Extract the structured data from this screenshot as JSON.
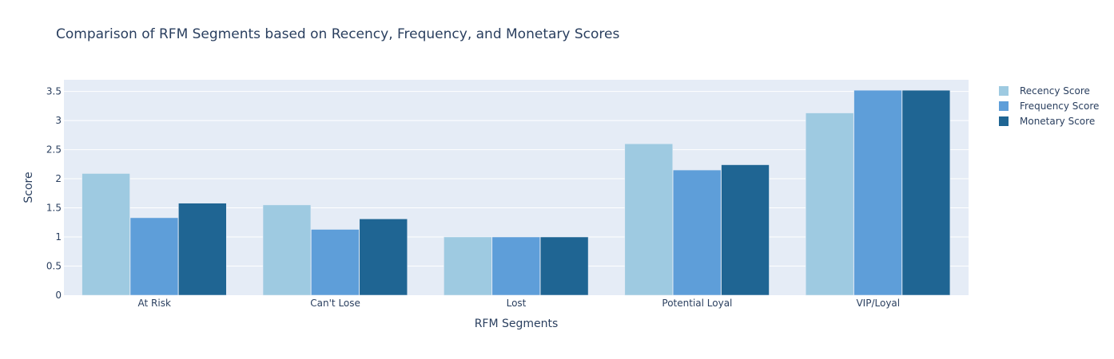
{
  "chart_data": {
    "type": "bar",
    "title": "Comparison of RFM Segments based on Recency, Frequency, and Monetary Scores",
    "xlabel": "RFM Segments",
    "ylabel": "Score",
    "categories": [
      "At Risk",
      "Can't Lose",
      "Lost",
      "Potential Loyal",
      "VIP/Loyal"
    ],
    "series": [
      {
        "name": "Recency Score",
        "color": "#9ecae1",
        "values": [
          2.09,
          1.55,
          1.0,
          2.6,
          3.13
        ]
      },
      {
        "name": "Frequency Score",
        "color": "#5e9ed9",
        "values": [
          1.33,
          1.13,
          1.0,
          2.15,
          3.52
        ]
      },
      {
        "name": "Monetary Score",
        "color": "#1f6593",
        "values": [
          1.58,
          1.31,
          1.0,
          2.24,
          3.52
        ]
      }
    ],
    "ylim": [
      0,
      3.7
    ],
    "yticks": [
      "0",
      "0.5",
      "1",
      "1.5",
      "2",
      "2.5",
      "3",
      "3.5"
    ],
    "ytick_values": [
      0,
      0.5,
      1,
      1.5,
      2,
      2.5,
      3,
      3.5
    ],
    "grid": true,
    "legend_position": "top-right",
    "plot_background": "#e5ecf6"
  }
}
